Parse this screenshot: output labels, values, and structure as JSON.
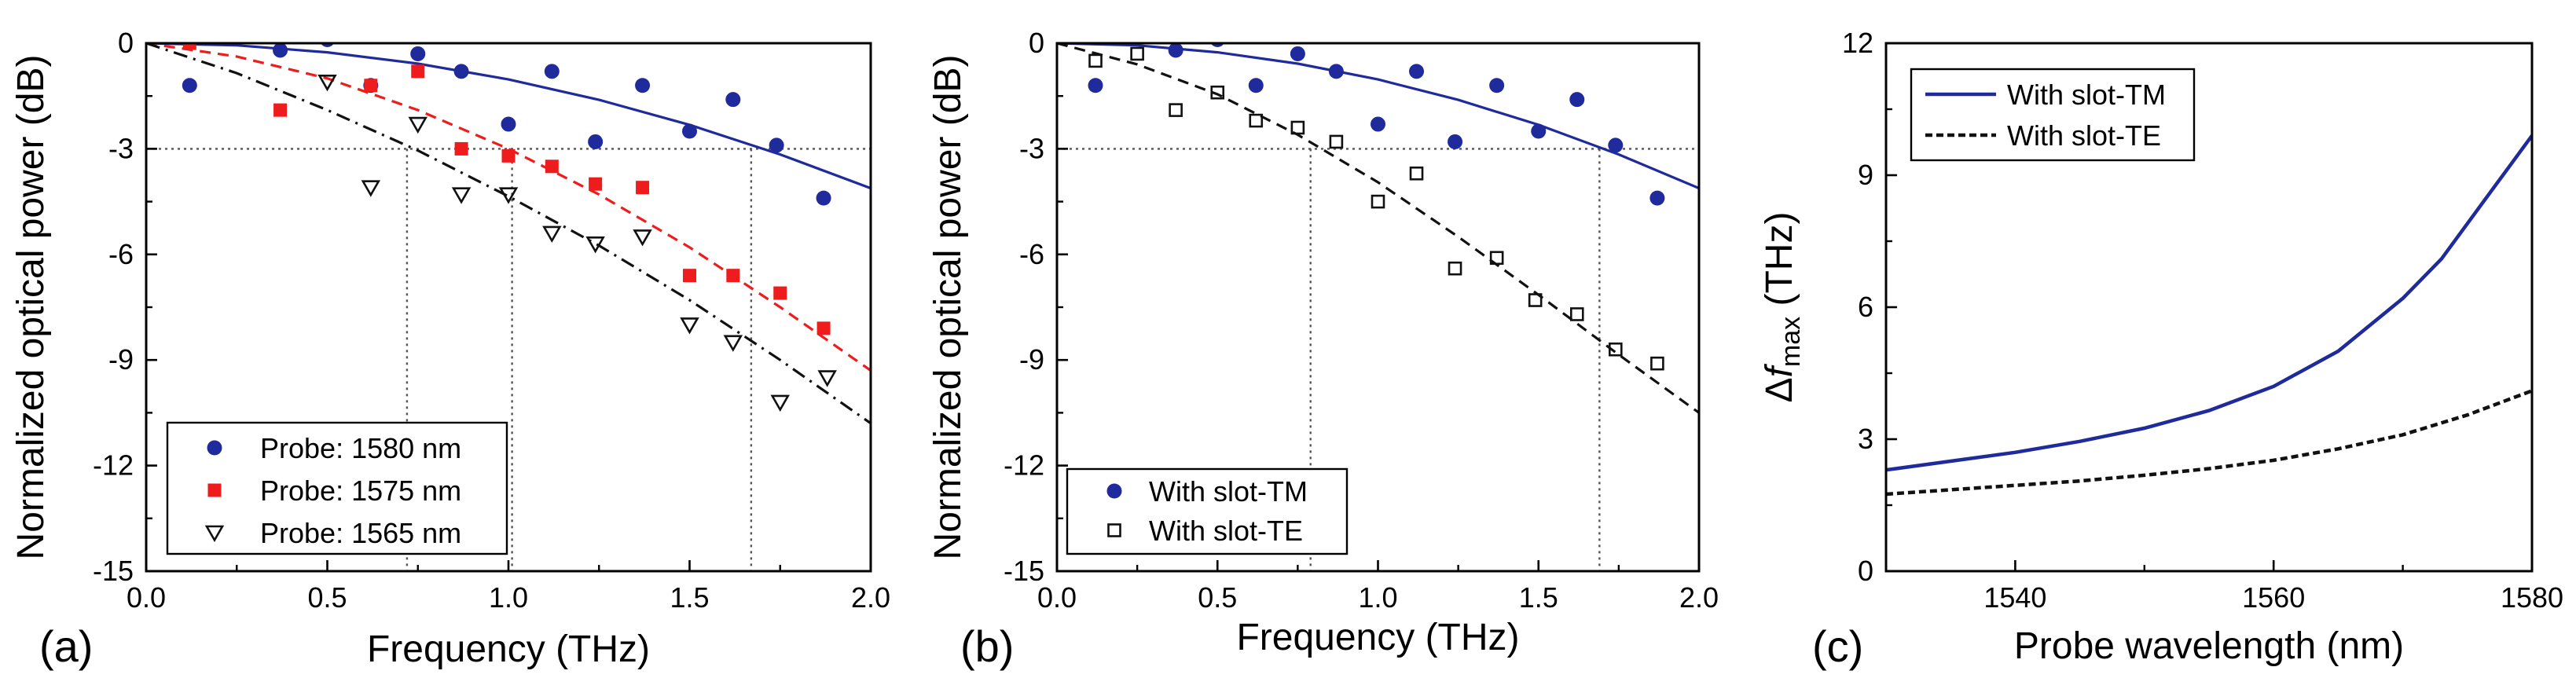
{
  "chart_data": [
    {
      "type": "scatter",
      "panel_label": "(a)",
      "xlabel": "Frequency (THz)",
      "ylabel": "Normalized optical power (dB)",
      "xlim": [
        0,
        2.0
      ],
      "ylim": [
        -15,
        0
      ],
      "xticks": [
        "0.0",
        "0.5",
        "1.0",
        "1.5",
        "2.0"
      ],
      "xtick_values": [
        0,
        0.5,
        1.0,
        1.5,
        2.0
      ],
      "yticks": [
        "0",
        "-3",
        "-6",
        "-9",
        "-12",
        "-15"
      ],
      "ytick_values": [
        0,
        -3,
        -6,
        -9,
        -12,
        -15
      ],
      "reference_line_db": -3,
      "cutoffs_thz": [
        0.72,
        1.01,
        1.67
      ],
      "legend_position": "bottom-left",
      "series": [
        {
          "name": "Probe: 1580 nm",
          "marker": "circle",
          "color": "#1f2a9c",
          "x": [
            0.12,
            0.37,
            0.5,
            0.62,
            0.75,
            0.87,
            1.0,
            1.12,
            1.24,
            1.37,
            1.5,
            1.62,
            1.74,
            1.87
          ],
          "y": [
            -1.2,
            -0.2,
            0.1,
            -1.2,
            -0.3,
            -0.8,
            -2.3,
            -0.8,
            -2.8,
            -1.2,
            -2.5,
            -1.6,
            -2.9,
            -4.4
          ]
        },
        {
          "name": "Probe: 1575 nm",
          "marker": "square",
          "color": "#ee1c1c",
          "x": [
            0.12,
            0.37,
            0.62,
            0.75,
            0.87,
            1.0,
            1.12,
            1.24,
            1.37,
            1.5,
            1.62,
            1.75,
            1.87
          ],
          "y": [
            0.0,
            -1.9,
            -1.2,
            -0.8,
            -3.0,
            -3.2,
            -3.5,
            -4.0,
            -4.1,
            -6.6,
            -6.6,
            -7.1,
            -8.1
          ]
        },
        {
          "name": "Probe: 1565 nm",
          "marker": "triangle-down",
          "color": "#111111",
          "x": [
            0.5,
            0.62,
            0.75,
            0.87,
            1.0,
            1.12,
            1.24,
            1.37,
            1.5,
            1.62,
            1.75,
            1.88
          ],
          "y": [
            -1.1,
            -4.1,
            -2.3,
            -4.3,
            -4.3,
            -5.4,
            -5.7,
            -5.5,
            -8.0,
            -8.5,
            -10.2,
            -9.5
          ]
        }
      ],
      "fits": [
        {
          "name": "1580 nm fit",
          "style": "solid",
          "color": "#1f2a9c",
          "x": [
            0,
            0.25,
            0.5,
            0.75,
            1.0,
            1.25,
            1.5,
            1.75,
            2.0
          ],
          "y": [
            0,
            -0.06,
            -0.26,
            -0.58,
            -1.03,
            -1.61,
            -2.32,
            -3.16,
            -4.12
          ]
        },
        {
          "name": "1575 nm fit",
          "style": "dashed",
          "color": "#ee1c1c",
          "x": [
            0,
            0.25,
            0.5,
            0.75,
            1.0,
            1.25,
            1.5,
            1.75,
            2.0
          ],
          "y": [
            0,
            -0.38,
            -1.0,
            -1.9,
            -3.0,
            -4.3,
            -5.8,
            -7.5,
            -9.3
          ]
        },
        {
          "name": "1565 nm fit",
          "style": "dashdot",
          "color": "#111111",
          "x": [
            0,
            0.25,
            0.5,
            0.75,
            1.0,
            1.25,
            1.5,
            1.75,
            2.0
          ],
          "y": [
            0,
            -0.85,
            -1.9,
            -3.05,
            -4.35,
            -5.75,
            -7.3,
            -9.0,
            -10.8
          ]
        }
      ]
    },
    {
      "type": "scatter",
      "panel_label": "(b)",
      "xlabel": "Frequency (THz)",
      "ylabel": "Normalized optical power (dB)",
      "xlim": [
        0,
        2.0
      ],
      "ylim": [
        -15,
        0
      ],
      "xticks": [
        "0.0",
        "0.5",
        "1.0",
        "1.5",
        "2.0"
      ],
      "xtick_values": [
        0,
        0.5,
        1.0,
        1.5,
        2.0
      ],
      "yticks": [
        "0",
        "-3",
        "-6",
        "-9",
        "-12",
        "-15"
      ],
      "ytick_values": [
        0,
        -3,
        -6,
        -9,
        -12,
        -15
      ],
      "reference_line_db": -3,
      "cutoffs_thz": [
        0.79,
        1.69
      ],
      "legend_position": "bottom-left",
      "series": [
        {
          "name": "With slot-TM",
          "marker": "circle",
          "color": "#1f2a9c",
          "x": [
            0.12,
            0.37,
            0.5,
            0.62,
            0.75,
            0.87,
            1.0,
            1.12,
            1.24,
            1.37,
            1.5,
            1.62,
            1.74,
            1.87
          ],
          "y": [
            -1.2,
            -0.2,
            0.1,
            -1.2,
            -0.3,
            -0.8,
            -2.3,
            -0.8,
            -2.8,
            -1.2,
            -2.5,
            -1.6,
            -2.9,
            -4.4
          ]
        },
        {
          "name": "With slot-TE",
          "marker": "open-square",
          "color": "#111111",
          "x": [
            0.12,
            0.25,
            0.37,
            0.5,
            0.62,
            0.75,
            0.87,
            1.0,
            1.12,
            1.24,
            1.37,
            1.49,
            1.62,
            1.74,
            1.87
          ],
          "y": [
            -0.5,
            -0.3,
            -1.9,
            -1.4,
            -2.2,
            -2.4,
            -2.8,
            -4.5,
            -3.7,
            -6.4,
            -6.1,
            -7.3,
            -7.7,
            -8.7,
            -9.1
          ]
        }
      ],
      "fits": [
        {
          "name": "TM fit",
          "style": "solid",
          "color": "#1f2a9c",
          "x": [
            0,
            0.25,
            0.5,
            0.75,
            1.0,
            1.25,
            1.5,
            1.75,
            2.0
          ],
          "y": [
            0,
            -0.06,
            -0.26,
            -0.58,
            -1.03,
            -1.61,
            -2.32,
            -3.16,
            -4.12
          ]
        },
        {
          "name": "TE fit",
          "style": "dashed",
          "color": "#111111",
          "x": [
            0,
            0.25,
            0.5,
            0.75,
            1.0,
            1.25,
            1.5,
            1.75,
            2.0
          ],
          "y": [
            0,
            -0.6,
            -1.45,
            -2.6,
            -3.95,
            -5.5,
            -7.15,
            -8.85,
            -10.5
          ]
        }
      ]
    },
    {
      "type": "line",
      "panel_label": "(c)",
      "xlabel": "Probe wavelength (nm)",
      "ylabel_prefix": "Δ",
      "ylabel_var": "f",
      "ylabel_sub": "max",
      "ylabel_unit": " (THz)",
      "xlim": [
        1530,
        1580
      ],
      "ylim": [
        0,
        12
      ],
      "xticks": [
        "1540",
        "1560",
        "1580"
      ],
      "xtick_values": [
        1540,
        1560,
        1580
      ],
      "yticks": [
        "0",
        "3",
        "6",
        "9",
        "12"
      ],
      "ytick_values": [
        0,
        3,
        6,
        9,
        12
      ],
      "legend_position": "top-left",
      "series": [
        {
          "name": "With slot-TM",
          "style": "solid",
          "color": "#1f2a9c",
          "x": [
            1530,
            1535,
            1540,
            1545,
            1550,
            1555,
            1560,
            1565,
            1570,
            1573,
            1576,
            1578,
            1580
          ],
          "y": [
            2.3,
            2.5,
            2.7,
            2.95,
            3.25,
            3.65,
            4.2,
            5.0,
            6.2,
            7.1,
            8.3,
            9.1,
            9.9
          ]
        },
        {
          "name": "With slot-TE",
          "style": "dashed",
          "color": "#111111",
          "x": [
            1530,
            1535,
            1540,
            1545,
            1550,
            1555,
            1560,
            1565,
            1570,
            1575,
            1580
          ],
          "y": [
            1.75,
            1.85,
            1.95,
            2.05,
            2.18,
            2.33,
            2.52,
            2.78,
            3.1,
            3.55,
            4.1
          ]
        }
      ]
    }
  ]
}
